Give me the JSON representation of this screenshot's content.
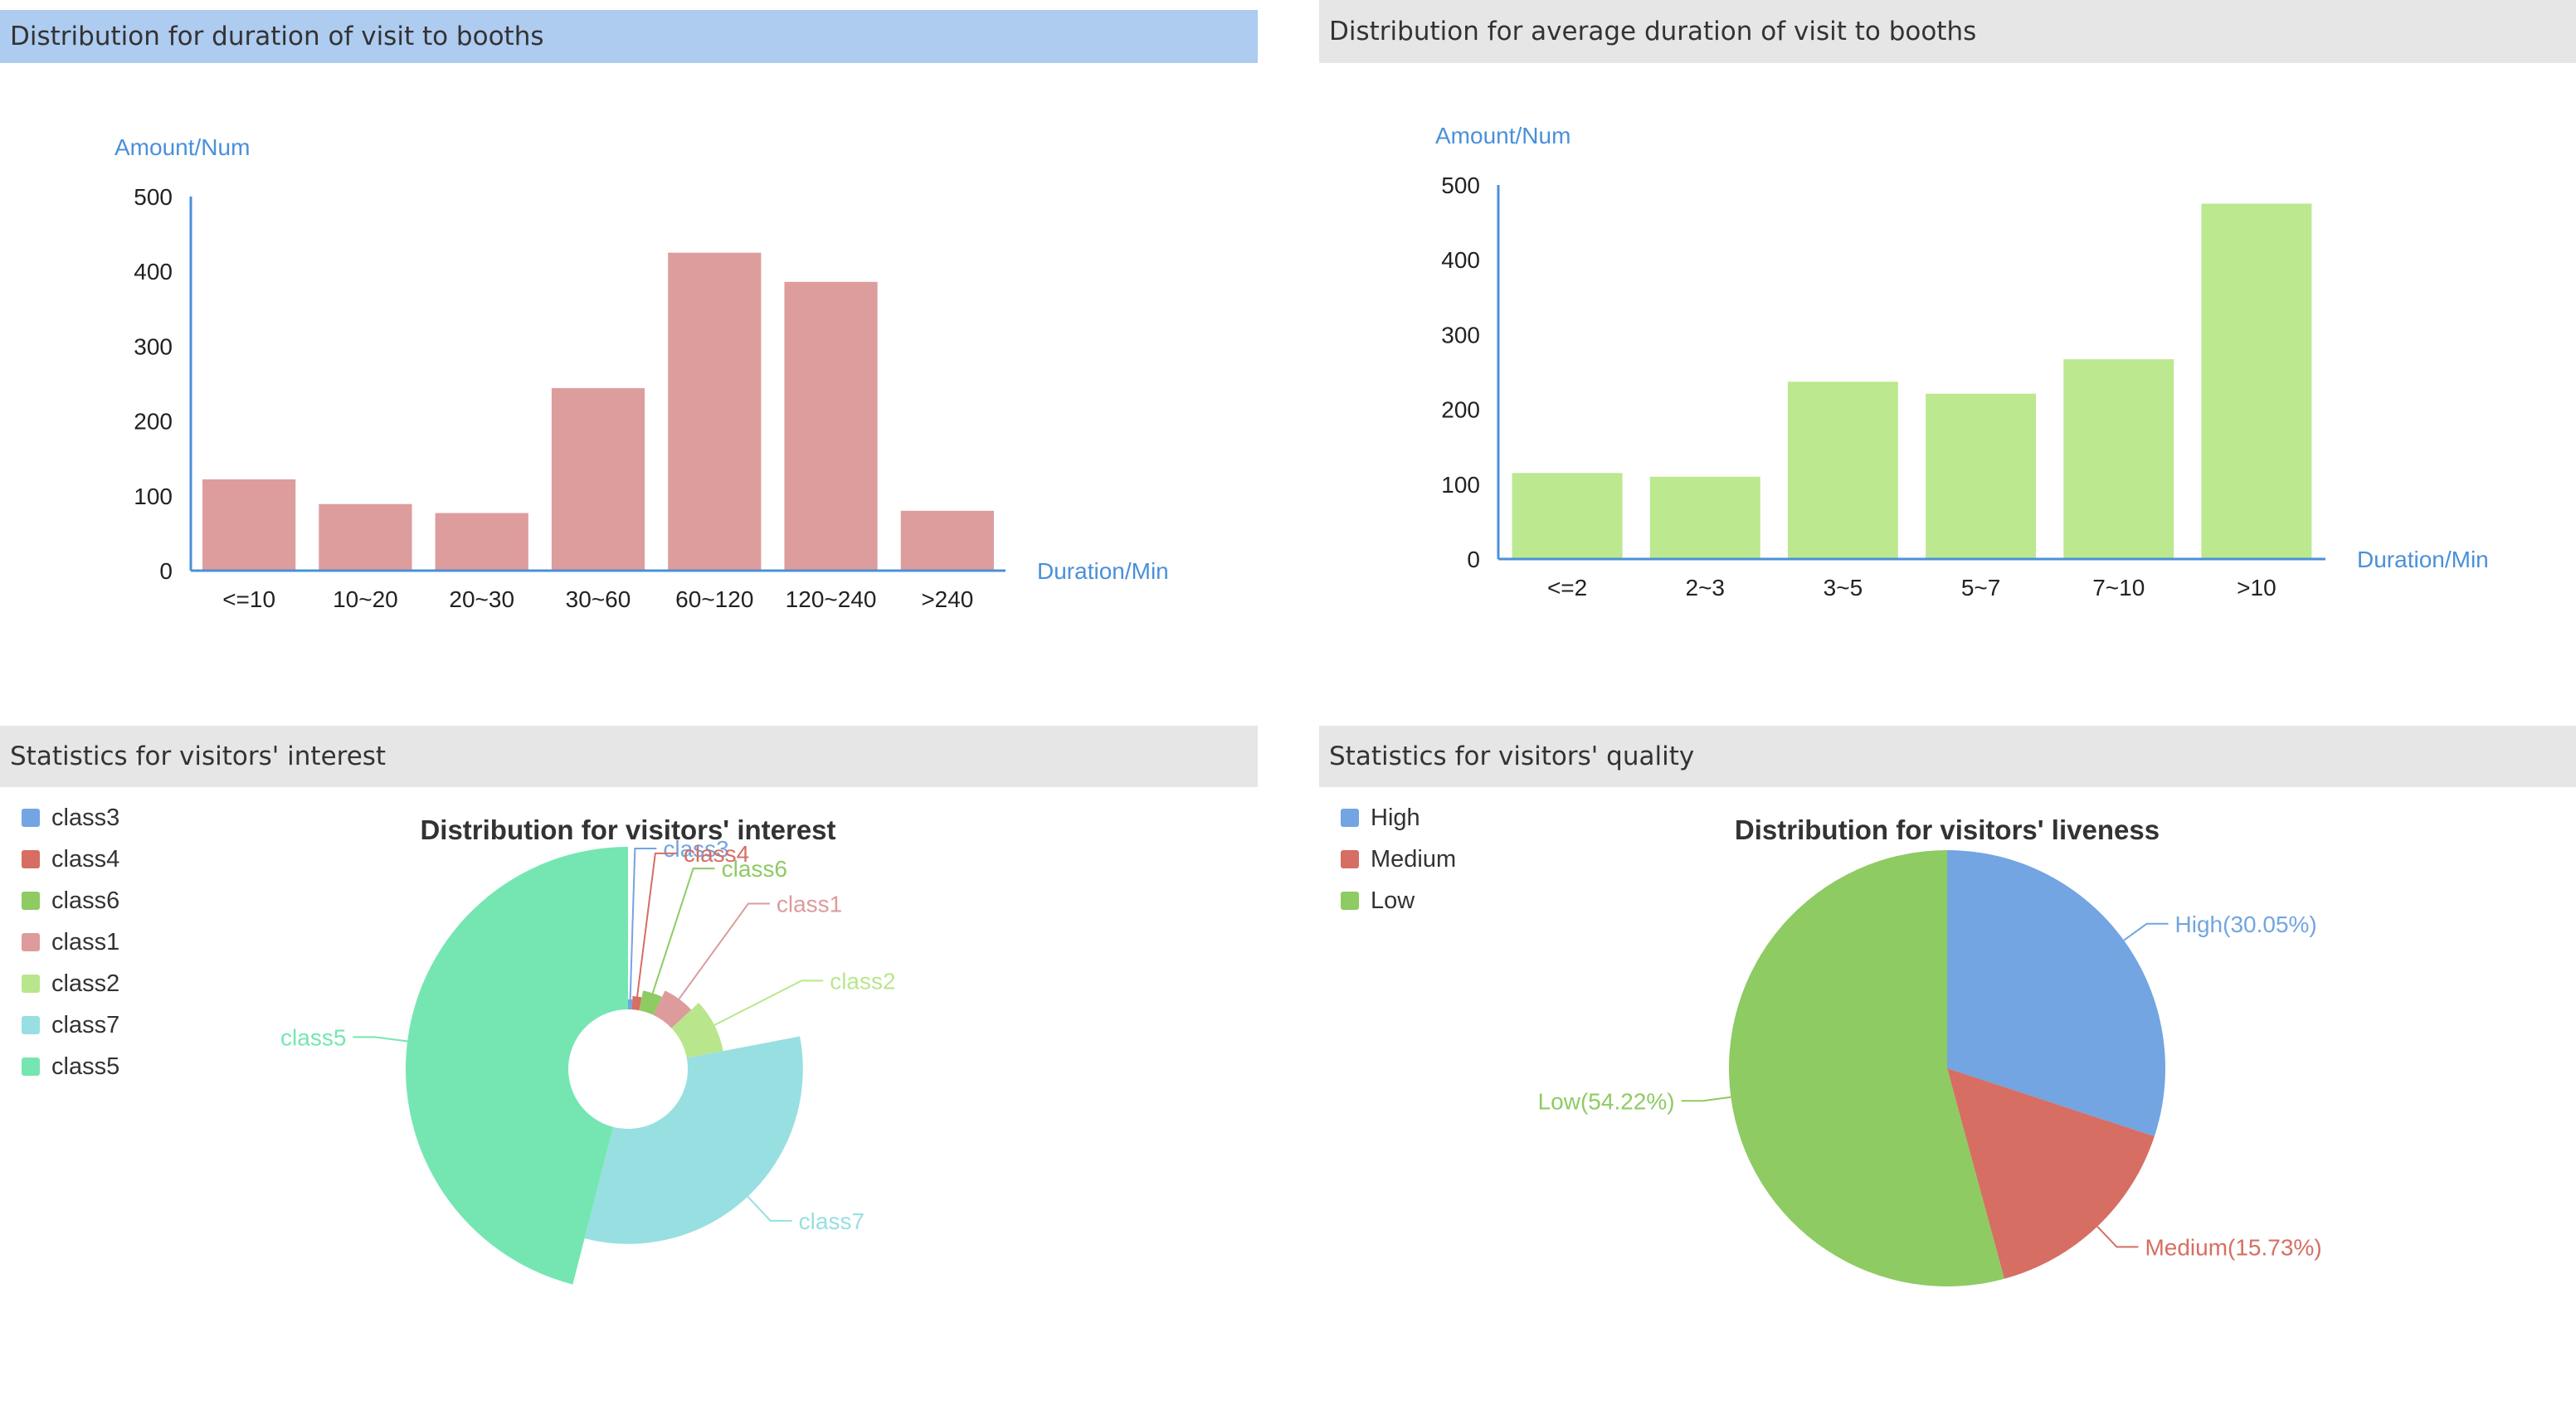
{
  "panels": {
    "duration": {
      "title": "Distribution for duration of visit to booths",
      "active": true
    },
    "avg_duration": {
      "title": "Distribution for average duration of visit to booths",
      "active": false
    },
    "interest": {
      "title": "Statistics for visitors' interest",
      "legend": [
        {
          "label": "class3",
          "color": "#72a5e1"
        },
        {
          "label": "class4",
          "color": "#d66e63"
        },
        {
          "label": "class6",
          "color": "#8ecb63"
        },
        {
          "label": "class1",
          "color": "#dd9b9c"
        },
        {
          "label": "class2",
          "color": "#b9e68d"
        },
        {
          "label": "class7",
          "color": "#98dfe1"
        },
        {
          "label": "class5",
          "color": "#75e6b2"
        }
      ]
    },
    "quality": {
      "title": "Statistics for visitors' quality",
      "legend": [
        {
          "label": "High",
          "color": "#72a5e1"
        },
        {
          "label": "Medium",
          "color": "#d66e63"
        },
        {
          "label": "Low",
          "color": "#8ecb63"
        }
      ]
    }
  },
  "chart_data": [
    {
      "type": "bar",
      "categories": [
        "<=10",
        "10~20",
        "20~30",
        "30~60",
        "60~120",
        "120~240",
        ">240"
      ],
      "values": [
        122,
        89,
        77,
        244,
        425,
        386,
        80
      ],
      "xlabel": "Duration/Min",
      "ylabel": "Amount/Num",
      "ylim": [
        0,
        500
      ],
      "yticks": [
        0,
        100,
        200,
        300,
        400,
        500
      ],
      "color": "#de9d9d",
      "axis_color": "#4a90d9"
    },
    {
      "type": "bar",
      "categories": [
        "<=2",
        "2~3",
        "3~5",
        "5~7",
        "7~10",
        ">10"
      ],
      "values": [
        115,
        110,
        237,
        221,
        267,
        475
      ],
      "xlabel": "Duration/Min",
      "ylabel": "Amount/Num",
      "ylim": [
        0,
        500
      ],
      "yticks": [
        0,
        100,
        200,
        300,
        400,
        500
      ],
      "color": "#bce88f",
      "axis_color": "#4a90d9"
    },
    {
      "type": "pie",
      "variant": "rose",
      "title": "Distribution for visitors' interest",
      "slices": [
        {
          "label": "class3",
          "value": 1,
          "color": "#72a5e1"
        },
        {
          "label": "class4",
          "value": 2,
          "color": "#d66e63"
        },
        {
          "label": "class6",
          "value": 4,
          "color": "#8ecb63"
        },
        {
          "label": "class1",
          "value": 6,
          "color": "#dd9b9c"
        },
        {
          "label": "class2",
          "value": 9,
          "color": "#b9e68d"
        },
        {
          "label": "class7",
          "value": 32,
          "color": "#98dfe1"
        },
        {
          "label": "class5",
          "value": 46,
          "color": "#75e6b2"
        }
      ]
    },
    {
      "type": "pie",
      "title": "Distribution for visitors' liveness",
      "slices": [
        {
          "label": "High",
          "value": 30.05,
          "text": "High(30.05%)",
          "color": "#72a5e1"
        },
        {
          "label": "Medium",
          "value": 15.73,
          "text": "Medium(15.73%)",
          "color": "#d66e63"
        },
        {
          "label": "Low",
          "value": 54.22,
          "text": "Low(54.22%)",
          "color": "#8ecb63"
        }
      ]
    }
  ]
}
